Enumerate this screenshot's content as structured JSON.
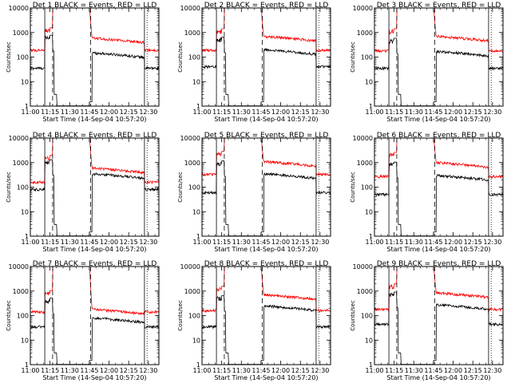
{
  "chart_data": {
    "type": "line",
    "x_ticks": [
      "11:00",
      "11:15",
      "11:30",
      "11:45",
      "12:00",
      "12:15",
      "12:30"
    ],
    "xlim_minutes_from_1100": [
      0,
      98
    ],
    "ylim": [
      1,
      10000
    ],
    "yscale": "log",
    "y_ticks": [
      "1",
      "10",
      "100",
      "1000",
      "10000"
    ],
    "ylabel": "Counts/sec",
    "xlabel": "Start Time (14-Sep-04 10:57:20)",
    "vertical_markers": {
      "solid_minutes": [
        11,
        87
      ],
      "dashed_minutes": [
        17,
        46
      ],
      "dotted_minutes": [
        89,
        98
      ]
    },
    "legend_note": "BLACK = Events, RED = LLD",
    "series_colors": {
      "events": "#000000",
      "lld": "#ff0000"
    },
    "panels": [
      {
        "title": "Det 1  BLACK = Events, RED = LLD",
        "events_base": 35,
        "lld_base": 190,
        "events_post": 150,
        "lld_post": 600,
        "peak": 11000,
        "early_events": 600,
        "early_lld": 1200
      },
      {
        "title": "Det 2  BLACK = Events, RED = LLD",
        "events_base": 40,
        "lld_base": 190,
        "events_post": 200,
        "lld_post": 700,
        "peak": 11000,
        "early_events": 500,
        "early_lld": 1100
      },
      {
        "title": "Det 3  BLACK = Events, RED = LLD",
        "events_base": 35,
        "lld_base": 180,
        "events_post": 170,
        "lld_post": 700,
        "peak": 11000,
        "early_events": 450,
        "early_lld": 1100
      },
      {
        "title": "Det 4  BLACK = Events, RED = LLD",
        "events_base": 80,
        "lld_base": 160,
        "events_post": 350,
        "lld_post": 600,
        "peak": 11000,
        "early_events": 1000,
        "early_lld": 1500
      },
      {
        "title": "Det 5  BLACK = Events, RED = LLD",
        "events_base": 60,
        "lld_base": 330,
        "events_post": 350,
        "lld_post": 1100,
        "peak": 11000,
        "early_events": 900,
        "early_lld": 2200
      },
      {
        "title": "Det 6  BLACK = Events, RED = LLD",
        "events_base": 50,
        "lld_base": 270,
        "events_post": 300,
        "lld_post": 1000,
        "peak": 11000,
        "early_events": 800,
        "early_lld": 2000
      },
      {
        "title": "Det 7  BLACK = Events, RED = LLD",
        "events_base": 35,
        "lld_base": 140,
        "events_post": 80,
        "lld_post": 180,
        "peak": 11000,
        "early_events": 400,
        "early_lld": 800
      },
      {
        "title": "Det 8  BLACK = Events, RED = LLD",
        "events_base": 35,
        "lld_base": 160,
        "events_post": 250,
        "lld_post": 700,
        "peak": 11000,
        "early_events": 500,
        "early_lld": 1200
      },
      {
        "title": "Det 9  BLACK = Events, RED = LLD",
        "events_base": 45,
        "lld_base": 180,
        "events_post": 280,
        "lld_post": 850,
        "peak": 11000,
        "early_events": 700,
        "early_lld": 1500
      }
    ]
  }
}
